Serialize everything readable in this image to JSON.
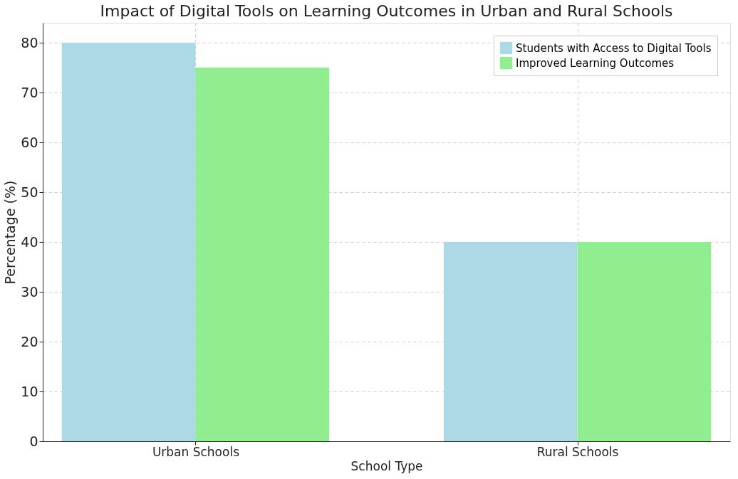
{
  "chart_data": {
    "type": "bar",
    "title": "Impact of Digital Tools on Learning Outcomes in Urban and Rural Schools",
    "xlabel": "School Type",
    "ylabel": "Percentage (%)",
    "categories": [
      "Urban Schools",
      "Rural Schools"
    ],
    "series": [
      {
        "name": "Students with Access to Digital Tools",
        "color": "#add8e6",
        "values": [
          80,
          40
        ]
      },
      {
        "name": "Improved Learning Outcomes",
        "color": "#90ee90",
        "values": [
          75,
          40
        ]
      }
    ],
    "ylim": [
      0,
      84
    ],
    "yticks": [
      0,
      10,
      20,
      30,
      40,
      50,
      60,
      70,
      80
    ],
    "grid": true,
    "legend": "top right"
  }
}
